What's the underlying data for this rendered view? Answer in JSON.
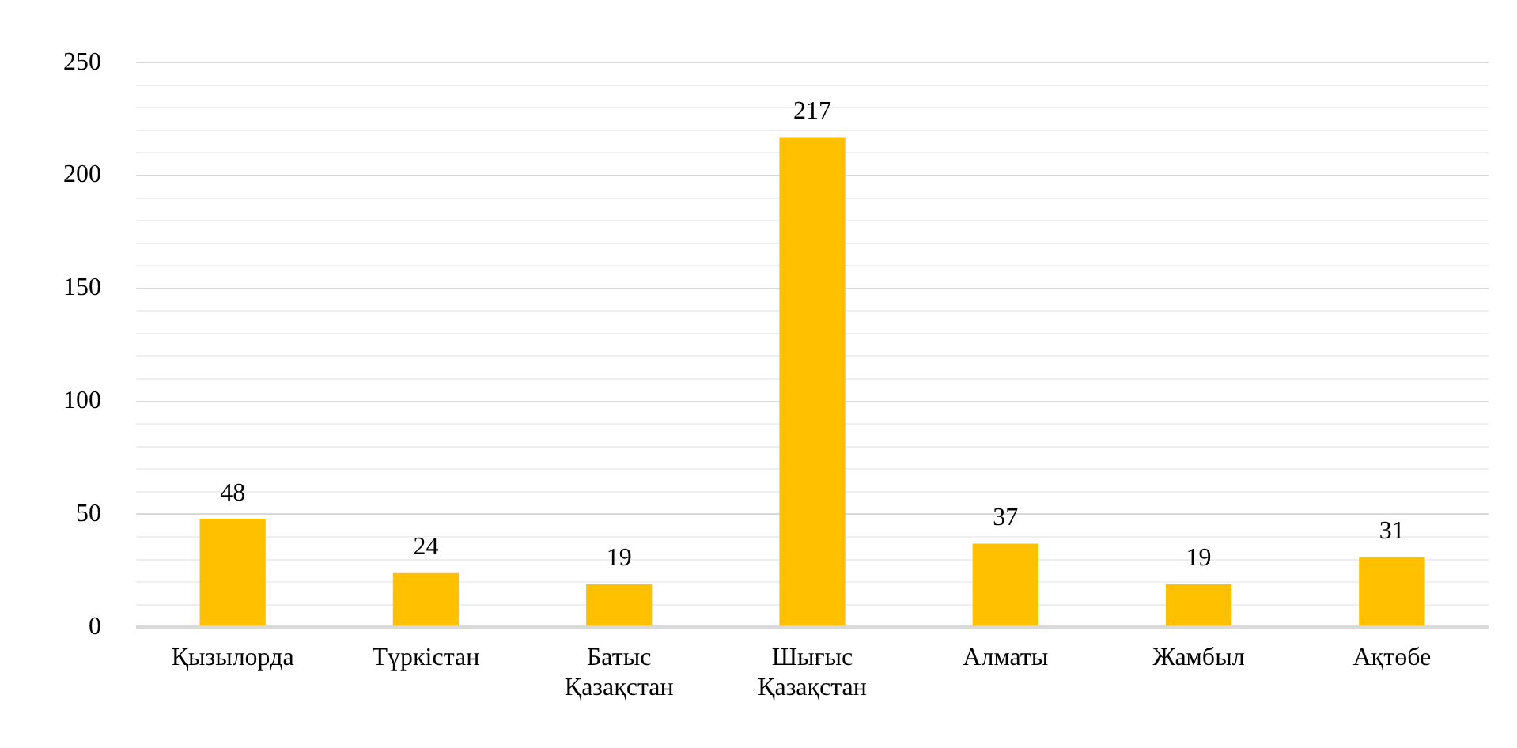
{
  "chart_data": {
    "type": "bar",
    "categories": [
      "Қызылорда",
      "Түркістан",
      "Батыс Қазақстан",
      "Шығыс Қазақстан",
      "Алматы",
      "Жамбыл",
      "Ақтөбе"
    ],
    "values": [
      48,
      24,
      19,
      217,
      37,
      19,
      31
    ],
    "color": "#ffc000",
    "ylim": [
      0,
      250
    ],
    "yticks": [
      0,
      {
        "value": 10,
        "label": null
      },
      {
        "value": 20,
        "label": null
      },
      {
        "value": 30,
        "label": null
      },
      {
        "value": 40,
        "label": null
      },
      50,
      {
        "value": 60,
        "label": null
      },
      {
        "value": 70,
        "label": null
      },
      {
        "value": 80,
        "label": null
      },
      {
        "value": 90,
        "label": null
      },
      100,
      {
        "value": 110,
        "label": null
      },
      {
        "value": 120,
        "label": null
      },
      {
        "value": 130,
        "label": null
      },
      {
        "value": 140,
        "label": null
      },
      150,
      {
        "value": 160,
        "label": null
      },
      {
        "value": 170,
        "label": null
      },
      {
        "value": 180,
        "label": null
      },
      {
        "value": 190,
        "label": null
      },
      200,
      {
        "value": 210,
        "label": null
      },
      {
        "value": 220,
        "label": null
      },
      {
        "value": 230,
        "label": null
      },
      {
        "value": 240,
        "label": null
      },
      250
    ],
    "grid": "y",
    "data_labels": true,
    "legend": false
  }
}
